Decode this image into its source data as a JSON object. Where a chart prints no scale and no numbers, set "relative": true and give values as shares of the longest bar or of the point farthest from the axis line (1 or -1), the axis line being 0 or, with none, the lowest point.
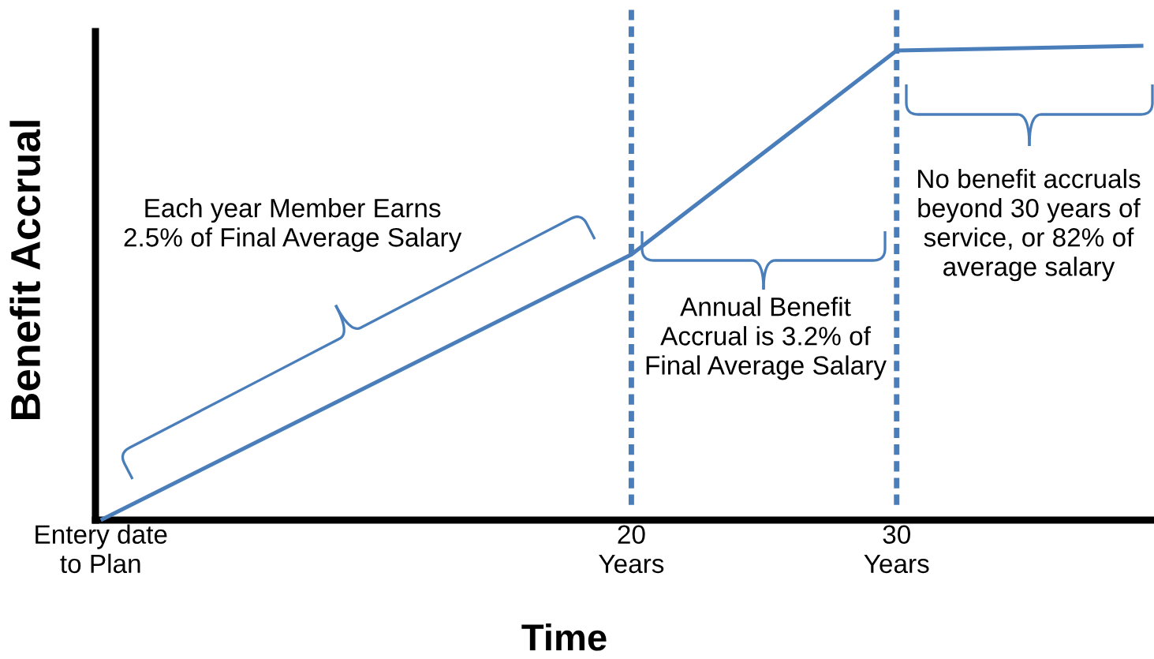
{
  "chart_data": {
    "type": "line",
    "xlabel": "Time",
    "ylabel": "Benefit Accrual",
    "x": [
      0,
      20,
      30,
      39.3
    ],
    "series": [
      {
        "color": "#4a7ebb",
        "values": [
          0,
          0.56,
          0.99,
          1
        ]
      }
    ],
    "relative": true,
    "xlim": [
      -0.2,
      39.7
    ],
    "xticks": [
      {
        "value": 0,
        "label": "Entery date\nto Plan"
      },
      {
        "value": 20,
        "label": "20\nYears"
      },
      {
        "value": 30,
        "label": "30\nYears"
      }
    ],
    "tick_labels": "x",
    "ref_lines": [
      {
        "axis": "x",
        "value": 20,
        "color": "#4a7ebb",
        "line_style": "dashed"
      },
      {
        "axis": "x",
        "value": 30,
        "color": "#4a7ebb",
        "line_style": "dashed"
      }
    ],
    "annotations": [
      "Each year Member Earns\n2.5% of Final Average Salary",
      "Annual Benefit\nAccrual is 3.2% of\nFinal Average Salary",
      "No benefit accruals\nbeyond 30 years of\nservice, or 82% of\naverage salary"
    ]
  }
}
